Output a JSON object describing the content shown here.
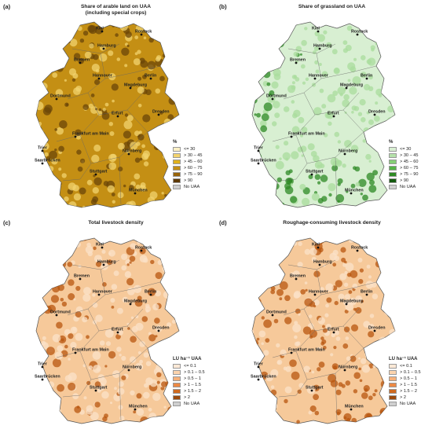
{
  "panels": [
    {
      "letter": "(a)",
      "title": "Share of arable land on UAA",
      "subtitle": "(including special crops)",
      "legend_title": "%",
      "colors": {
        "land": "#c48f14",
        "accent": "#6b4508",
        "light": "#f2d36e"
      },
      "legend": [
        {
          "label": "<= 30",
          "color": "#fbf0c4"
        },
        {
          "label": "> 30 – 45",
          "color": "#f2d36e"
        },
        {
          "label": "> 45 – 60",
          "color": "#e0b21c"
        },
        {
          "label": "> 60 – 75",
          "color": "#c48f14"
        },
        {
          "label": "> 75 – 90",
          "color": "#97640b"
        },
        {
          "label": "> 90",
          "color": "#5e3a06"
        },
        {
          "label": "No UAA",
          "color": "#cfcfcf"
        }
      ]
    },
    {
      "letter": "(b)",
      "title": "Share of grassland on UAA",
      "subtitle": "",
      "legend_title": "%",
      "colors": {
        "land": "#d8efd2",
        "accent": "#2e8a24",
        "light": "#a9dc9c"
      },
      "legend": [
        {
          "label": "<= 30",
          "color": "#d8efd2"
        },
        {
          "label": "> 30 – 45",
          "color": "#b5e2aa"
        },
        {
          "label": "> 45 – 60",
          "color": "#86cf77"
        },
        {
          "label": "> 60 – 75",
          "color": "#55b447"
        },
        {
          "label": "> 75 – 90",
          "color": "#2e8a24"
        },
        {
          "label": "> 90",
          "color": "#14590f"
        },
        {
          "label": "No UAA",
          "color": "#cfcfcf"
        }
      ]
    },
    {
      "letter": "(c)",
      "title": "Total livestock density",
      "subtitle": "",
      "legend_title": "LU ha⁻¹ UAA",
      "colors": {
        "land": "#f6c99a",
        "accent": "#b8560f",
        "light": "#fbe2c8"
      },
      "legend": [
        {
          "label": "<= 0.1",
          "color": "#fde9d6"
        },
        {
          "label": "> 0.1 – 0.5",
          "color": "#fbd3ad"
        },
        {
          "label": "> 0.5 – 1",
          "color": "#f6b079"
        },
        {
          "label": "> 1 – 1.5",
          "color": "#ec8a45"
        },
        {
          "label": "> 1.5 – 2",
          "color": "#cf6a1f"
        },
        {
          "label": "> 2",
          "color": "#9c4a0c"
        },
        {
          "label": "No UAA",
          "color": "#cfcfcf"
        }
      ]
    },
    {
      "letter": "(d)",
      "title": "Roughage-consuming livestock density",
      "subtitle": "",
      "legend_title": "LU ha⁻¹ UAA",
      "colors": {
        "land": "#f6c99a",
        "accent": "#b8560f",
        "light": "#fbe2c8"
      },
      "legend": [
        {
          "label": "<= 0.1",
          "color": "#fde9d6"
        },
        {
          "label": "> 0.1 – 0.5",
          "color": "#fbd3ad"
        },
        {
          "label": "> 0.5 – 1",
          "color": "#f6b079"
        },
        {
          "label": "> 1 – 1.5",
          "color": "#ec8a45"
        },
        {
          "label": "> 1.5 – 2",
          "color": "#cf6a1f"
        },
        {
          "label": "> 2",
          "color": "#9c4a0c"
        },
        {
          "label": "No UAA",
          "color": "#cfcfcf"
        }
      ]
    }
  ],
  "cities": {
    "kiel": "Kiel",
    "rostock": "Rostock",
    "hamburg": "Hamburg",
    "bremen": "Bremen",
    "berlin": "Berlin",
    "hannover": "Hannover",
    "magdeburg": "Magdeburg",
    "dortmund": "Dortmund",
    "erfurt": "Erfurt",
    "dresden": "Dresden",
    "frankfurt": "Frankfurt am Main",
    "trier": "Trier",
    "saarbruecken": "Saarbrücken",
    "nuernberg": "Nürnberg",
    "stuttgart": "Stuttgart",
    "muenchen": "München"
  }
}
